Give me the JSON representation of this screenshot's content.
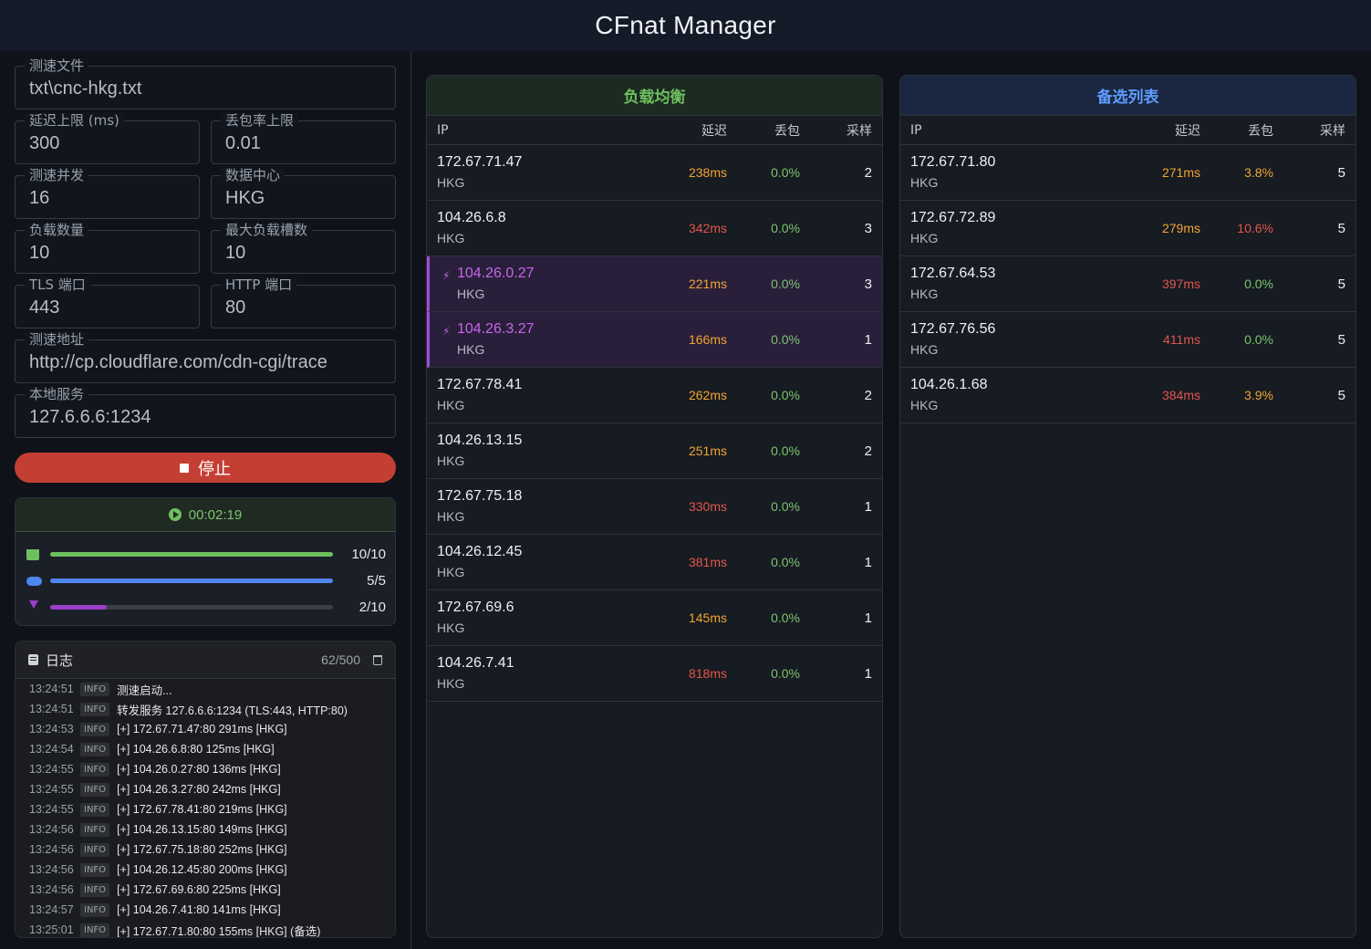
{
  "app": {
    "title": "CFnat Manager"
  },
  "config": {
    "file": {
      "label": "测速文件",
      "value": "txt\\cnc-hkg.txt"
    },
    "latency": {
      "label": "延迟上限 (ms)",
      "value": "300"
    },
    "loss": {
      "label": "丢包率上限",
      "value": "0.01"
    },
    "concurrency": {
      "label": "测速并发",
      "value": "16"
    },
    "datacenter": {
      "label": "数据中心",
      "value": "HKG"
    },
    "lb_count": {
      "label": "负载数量",
      "value": "10"
    },
    "max_slots": {
      "label": "最大负载槽数",
      "value": "10"
    },
    "tls_port": {
      "label": "TLS 端口",
      "value": "443"
    },
    "http_port": {
      "label": "HTTP 端口",
      "value": "80"
    },
    "url": {
      "label": "测速地址",
      "value": "http://cp.cloudflare.com/cdn-cgi/trace"
    },
    "local": {
      "label": "本地服务",
      "value": "127.6.6.6:1234"
    }
  },
  "stop_button": {
    "label": "停止"
  },
  "status": {
    "elapsed": "00:02:19",
    "bars": [
      {
        "icon": "server-icon",
        "count": "10/10",
        "fraction": 1.0,
        "color": "#6fbf5f"
      },
      {
        "icon": "cloud-upload-icon",
        "count": "5/5",
        "fraction": 1.0,
        "color": "#4f86f0"
      },
      {
        "icon": "pin-icon",
        "count": "2/10",
        "fraction": 0.2,
        "color": "#9c3fc9"
      }
    ]
  },
  "log": {
    "title": "日志",
    "count": "62/500",
    "lines": [
      {
        "time": "13:24:51",
        "level": "INFO",
        "msg": "测速启动..."
      },
      {
        "time": "13:24:51",
        "level": "INFO",
        "msg": "转发服务 127.6.6.6:1234 (TLS:443, HTTP:80)"
      },
      {
        "time": "13:24:53",
        "level": "INFO",
        "msg": "[+] 172.67.71.47:80 291ms [HKG]"
      },
      {
        "time": "13:24:54",
        "level": "INFO",
        "msg": "[+] 104.26.6.8:80 125ms [HKG]"
      },
      {
        "time": "13:24:55",
        "level": "INFO",
        "msg": "[+] 104.26.0.27:80 136ms [HKG]"
      },
      {
        "time": "13:24:55",
        "level": "INFO",
        "msg": "[+] 104.26.3.27:80 242ms [HKG]"
      },
      {
        "time": "13:24:55",
        "level": "INFO",
        "msg": "[+] 172.67.78.41:80 219ms [HKG]"
      },
      {
        "time": "13:24:56",
        "level": "INFO",
        "msg": "[+] 104.26.13.15:80 149ms [HKG]"
      },
      {
        "time": "13:24:56",
        "level": "INFO",
        "msg": "[+] 172.67.75.18:80 252ms [HKG]"
      },
      {
        "time": "13:24:56",
        "level": "INFO",
        "msg": "[+] 104.26.12.45:80 200ms [HKG]"
      },
      {
        "time": "13:24:56",
        "level": "INFO",
        "msg": "[+] 172.67.69.6:80 225ms [HKG]"
      },
      {
        "time": "13:24:57",
        "level": "INFO",
        "msg": "[+] 104.26.7.41:80 141ms [HKG]"
      },
      {
        "time": "13:25:01",
        "level": "INFO",
        "msg": "[+] 172.67.71.80:80 155ms [HKG] (备选)"
      }
    ]
  },
  "columns": {
    "ip": "IP",
    "latency": "延迟",
    "loss": "丢包",
    "samples": "采样"
  },
  "load_balance": {
    "title": "负载均衡",
    "rows": [
      {
        "ip": "172.67.71.47",
        "dc": "HKG",
        "latency": "238ms",
        "lat_color": "#f0a531",
        "loss": "0.0%",
        "loss_color": "#7cc46e",
        "samples": "2",
        "active": false
      },
      {
        "ip": "104.26.6.8",
        "dc": "HKG",
        "latency": "342ms",
        "lat_color": "#e0574d",
        "loss": "0.0%",
        "loss_color": "#7cc46e",
        "samples": "3",
        "active": false
      },
      {
        "ip": "104.26.0.27",
        "dc": "HKG",
        "latency": "221ms",
        "lat_color": "#f0a531",
        "loss": "0.0%",
        "loss_color": "#7cc46e",
        "samples": "3",
        "active": true
      },
      {
        "ip": "104.26.3.27",
        "dc": "HKG",
        "latency": "166ms",
        "lat_color": "#f0a531",
        "loss": "0.0%",
        "loss_color": "#7cc46e",
        "samples": "1",
        "active": true
      },
      {
        "ip": "172.67.78.41",
        "dc": "HKG",
        "latency": "262ms",
        "lat_color": "#f0a531",
        "loss": "0.0%",
        "loss_color": "#7cc46e",
        "samples": "2",
        "active": false
      },
      {
        "ip": "104.26.13.15",
        "dc": "HKG",
        "latency": "251ms",
        "lat_color": "#f0a531",
        "loss": "0.0%",
        "loss_color": "#7cc46e",
        "samples": "2",
        "active": false
      },
      {
        "ip": "172.67.75.18",
        "dc": "HKG",
        "latency": "330ms",
        "lat_color": "#e0574d",
        "loss": "0.0%",
        "loss_color": "#7cc46e",
        "samples": "1",
        "active": false
      },
      {
        "ip": "104.26.12.45",
        "dc": "HKG",
        "latency": "381ms",
        "lat_color": "#e0574d",
        "loss": "0.0%",
        "loss_color": "#7cc46e",
        "samples": "1",
        "active": false
      },
      {
        "ip": "172.67.69.6",
        "dc": "HKG",
        "latency": "145ms",
        "lat_color": "#f0a531",
        "loss": "0.0%",
        "loss_color": "#7cc46e",
        "samples": "1",
        "active": false
      },
      {
        "ip": "104.26.7.41",
        "dc": "HKG",
        "latency": "818ms",
        "lat_color": "#e0574d",
        "loss": "0.0%",
        "loss_color": "#7cc46e",
        "samples": "1",
        "active": false
      }
    ]
  },
  "backup": {
    "title": "备选列表",
    "rows": [
      {
        "ip": "172.67.71.80",
        "dc": "HKG",
        "latency": "271ms",
        "lat_color": "#f0a531",
        "loss": "3.8%",
        "loss_color": "#f0a531",
        "samples": "5",
        "active": false
      },
      {
        "ip": "172.67.72.89",
        "dc": "HKG",
        "latency": "279ms",
        "lat_color": "#f0a531",
        "loss": "10.6%",
        "loss_color": "#e0574d",
        "samples": "5",
        "active": false
      },
      {
        "ip": "172.67.64.53",
        "dc": "HKG",
        "latency": "397ms",
        "lat_color": "#e0574d",
        "loss": "0.0%",
        "loss_color": "#7cc46e",
        "samples": "5",
        "active": false
      },
      {
        "ip": "172.67.76.56",
        "dc": "HKG",
        "latency": "411ms",
        "lat_color": "#e0574d",
        "loss": "0.0%",
        "loss_color": "#7cc46e",
        "samples": "5",
        "active": false
      },
      {
        "ip": "104.26.1.68",
        "dc": "HKG",
        "latency": "384ms",
        "lat_color": "#e0574d",
        "loss": "3.9%",
        "loss_color": "#f0a531",
        "samples": "5",
        "active": false
      }
    ]
  }
}
